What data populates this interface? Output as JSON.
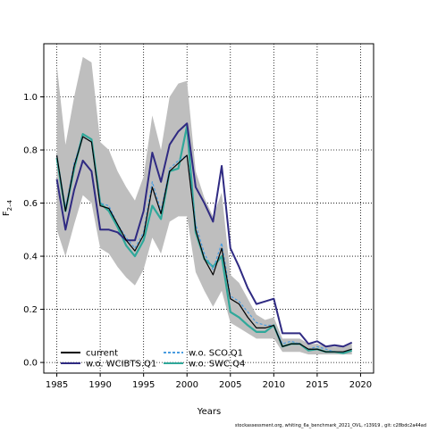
{
  "chart_data": {
    "type": "line",
    "xlabel": "Years",
    "ylabel_main": "F",
    "ylabel_sub": "2–4",
    "xlim": [
      1983.5,
      2021.5
    ],
    "ylim": [
      -0.04,
      1.2
    ],
    "xticks": [
      1985,
      1990,
      1995,
      2000,
      2005,
      2010,
      2015,
      2020
    ],
    "yticks": [
      0.0,
      0.2,
      0.4,
      0.6,
      0.8,
      1.0
    ],
    "ytick_labels": [
      "0.0",
      "0.2",
      "0.4",
      "0.6",
      "0.8",
      "1.0"
    ],
    "grid": "dotted",
    "legend_position": "bottom-left",
    "colors": {
      "ci_band": "#bebebe",
      "current": "#000000",
      "wo_wcibts_q1": "#2f2a82",
      "wo_sco_q1": "#4a9de0",
      "wo_swc_q4": "#2fa89a"
    },
    "x": [
      1985,
      1986,
      1987,
      1988,
      1989,
      1990,
      1991,
      1992,
      1993,
      1994,
      1995,
      1996,
      1997,
      1998,
      1999,
      2000,
      2001,
      2002,
      2003,
      2004,
      2005,
      2006,
      2007,
      2008,
      2009,
      2010,
      2011,
      2012,
      2013,
      2014,
      2015,
      2016,
      2017,
      2018,
      2019
    ],
    "ci_band": {
      "upper": [
        1.12,
        0.82,
        1.0,
        1.15,
        1.13,
        0.83,
        0.8,
        0.72,
        0.66,
        0.61,
        0.7,
        0.93,
        0.8,
        1.0,
        1.05,
        1.06,
        0.72,
        0.62,
        0.55,
        0.64,
        0.33,
        0.3,
        0.24,
        0.18,
        0.16,
        0.17,
        0.09,
        0.09,
        0.09,
        0.07,
        0.07,
        0.06,
        0.06,
        0.06,
        0.07
      ],
      "lower": [
        0.5,
        0.4,
        0.52,
        0.63,
        0.6,
        0.43,
        0.41,
        0.36,
        0.32,
        0.29,
        0.35,
        0.47,
        0.41,
        0.53,
        0.55,
        0.55,
        0.34,
        0.27,
        0.21,
        0.27,
        0.15,
        0.13,
        0.11,
        0.09,
        0.09,
        0.09,
        0.04,
        0.04,
        0.04,
        0.03,
        0.03,
        0.03,
        0.03,
        0.03,
        0.03
      ]
    },
    "series": [
      {
        "name": "current",
        "key": "current",
        "values": [
          0.78,
          0.57,
          0.74,
          0.85,
          0.83,
          0.59,
          0.58,
          0.52,
          0.46,
          0.42,
          0.48,
          0.66,
          0.56,
          0.72,
          0.75,
          0.78,
          0.5,
          0.39,
          0.33,
          0.43,
          0.24,
          0.22,
          0.17,
          0.13,
          0.13,
          0.14,
          0.06,
          0.07,
          0.07,
          0.05,
          0.05,
          0.04,
          0.04,
          0.04,
          0.05
        ]
      },
      {
        "name": "w.o. WCIBTS.Q1",
        "key": "wo_wcibts_q1",
        "values": [
          0.69,
          0.5,
          0.65,
          0.76,
          0.72,
          0.5,
          0.5,
          0.49,
          0.46,
          0.46,
          0.57,
          0.79,
          0.68,
          0.82,
          0.87,
          0.9,
          0.66,
          0.6,
          0.53,
          0.74,
          0.43,
          0.36,
          0.28,
          0.22,
          0.23,
          0.24,
          0.11,
          0.11,
          0.11,
          0.07,
          0.08,
          0.06,
          0.065,
          0.06,
          0.075
        ]
      },
      {
        "name": "w.o. SCO.Q1",
        "key": "wo_sco_q1",
        "values": [
          0.78,
          0.58,
          0.75,
          0.85,
          0.83,
          0.6,
          0.59,
          0.52,
          0.47,
          0.43,
          0.49,
          0.68,
          0.57,
          0.73,
          0.76,
          0.78,
          0.52,
          0.41,
          0.35,
          0.45,
          0.25,
          0.23,
          0.19,
          0.15,
          0.14,
          0.14,
          0.07,
          0.08,
          0.07,
          0.05,
          0.06,
          0.05,
          0.04,
          0.04,
          0.05
        ]
      },
      {
        "name": "w.o. SWC.Q4",
        "key": "wo_swc_q4",
        "values": [
          0.77,
          0.57,
          0.73,
          0.86,
          0.84,
          0.6,
          0.57,
          0.51,
          0.44,
          0.4,
          0.46,
          0.59,
          0.54,
          0.72,
          0.73,
          0.89,
          0.49,
          0.39,
          0.36,
          0.4,
          0.19,
          0.17,
          0.14,
          0.115,
          0.115,
          0.14,
          0.06,
          0.07,
          0.07,
          0.045,
          0.05,
          0.04,
          0.04,
          0.035,
          0.045
        ]
      }
    ],
    "legend": [
      {
        "label": "current",
        "key": "current",
        "style": "solid"
      },
      {
        "label": "w.o. WCIBTS.Q1",
        "key": "wo_wcibts_q1",
        "style": "solid"
      },
      {
        "label": "w.o. SCO.Q1",
        "key": "wo_sco_q1",
        "style": "dashed"
      },
      {
        "label": "w.o. SWC.Q4",
        "key": "wo_swc_q4",
        "style": "solid"
      }
    ],
    "footer_note": "stockassessment.org, whiting_6a_benchmark_2021_OVL, r13919 , git: c28bdc2a44ad"
  }
}
